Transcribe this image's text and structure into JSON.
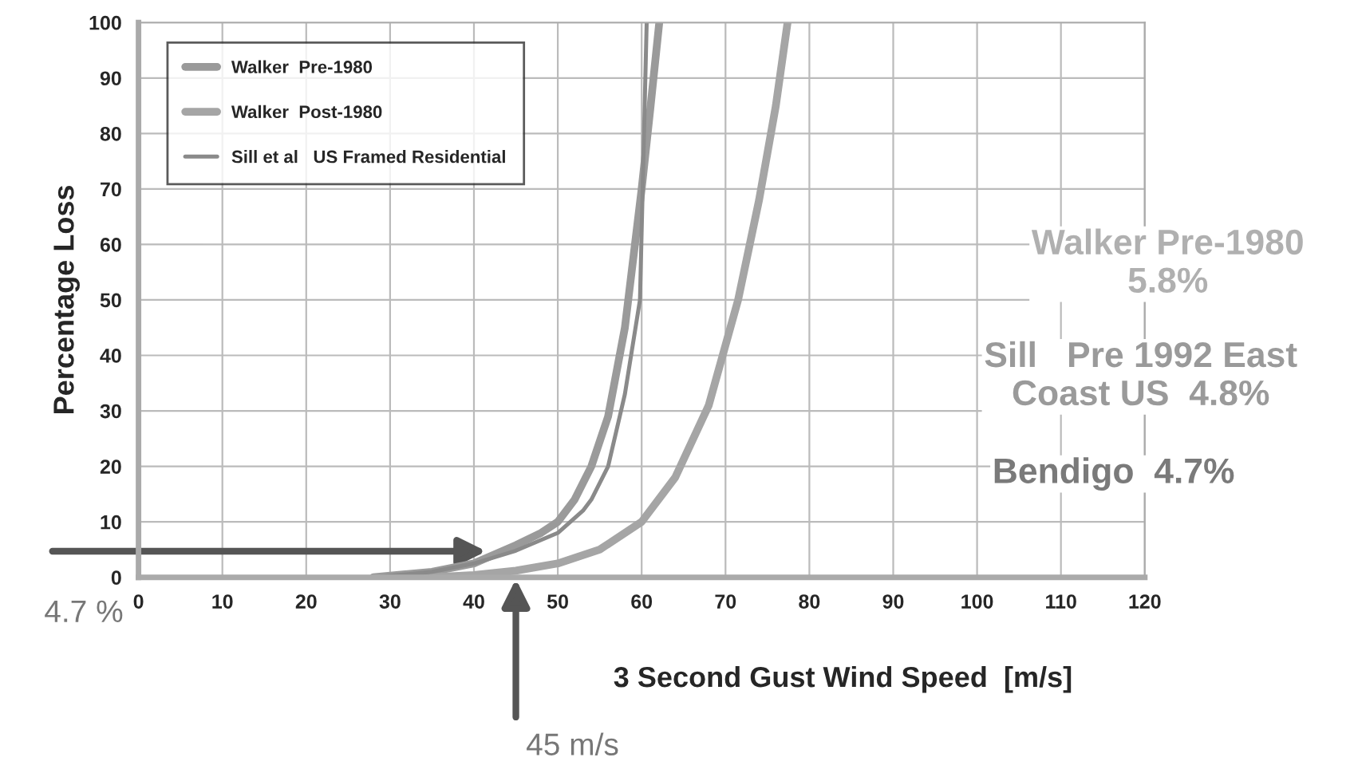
{
  "chart_data": {
    "type": "line",
    "xlabel": "3 Second Gust Wind Speed  [m/s]",
    "ylabel": "Percentage Loss",
    "xlim": [
      0,
      120
    ],
    "ylim": [
      0,
      100
    ],
    "xticks": [
      0,
      10,
      20,
      30,
      40,
      50,
      60,
      70,
      80,
      90,
      100,
      110,
      120
    ],
    "yticks": [
      0,
      10,
      20,
      30,
      40,
      50,
      60,
      70,
      80,
      90,
      100
    ],
    "grid": true,
    "legend": "top left",
    "line_style": "solid",
    "marker": "none",
    "series": [
      {
        "name": "Walker  Pre-1980",
        "color": "#9a9a9a",
        "x": [
          28,
          35,
          40,
          45,
          48,
          50,
          52,
          54,
          56,
          58,
          60,
          61,
          62.1
        ],
        "values": [
          0,
          1,
          2.5,
          5.8,
          8,
          10,
          14,
          20,
          29,
          45,
          70,
          84,
          100
        ]
      },
      {
        "name": "Walker  Post-1980",
        "color": "#a5a5a5",
        "x": [
          35,
          40,
          45,
          50,
          55,
          60,
          64,
          68,
          71.5,
          74,
          76,
          77.4
        ],
        "values": [
          0,
          0.4,
          1.2,
          2.5,
          5,
          10,
          18,
          31,
          50,
          68,
          85,
          100
        ]
      },
      {
        "name": "Sill et al   US Framed Residential",
        "color": "#8a8a8a",
        "x": [
          28,
          35,
          40,
          45,
          50,
          53,
          54,
          56,
          58,
          59.8,
          60.6
        ],
        "values": [
          0,
          1,
          2.5,
          4.8,
          8,
          12,
          14,
          20,
          33,
          50,
          100
        ]
      }
    ],
    "annotations": [
      "4.7 %",
      "45 m/s",
      "Walker Pre-1980\n5.8%",
      "Sill   Pre 1992 East\nCoast US  4.8%",
      "Bendigo  4.7%"
    ]
  }
}
